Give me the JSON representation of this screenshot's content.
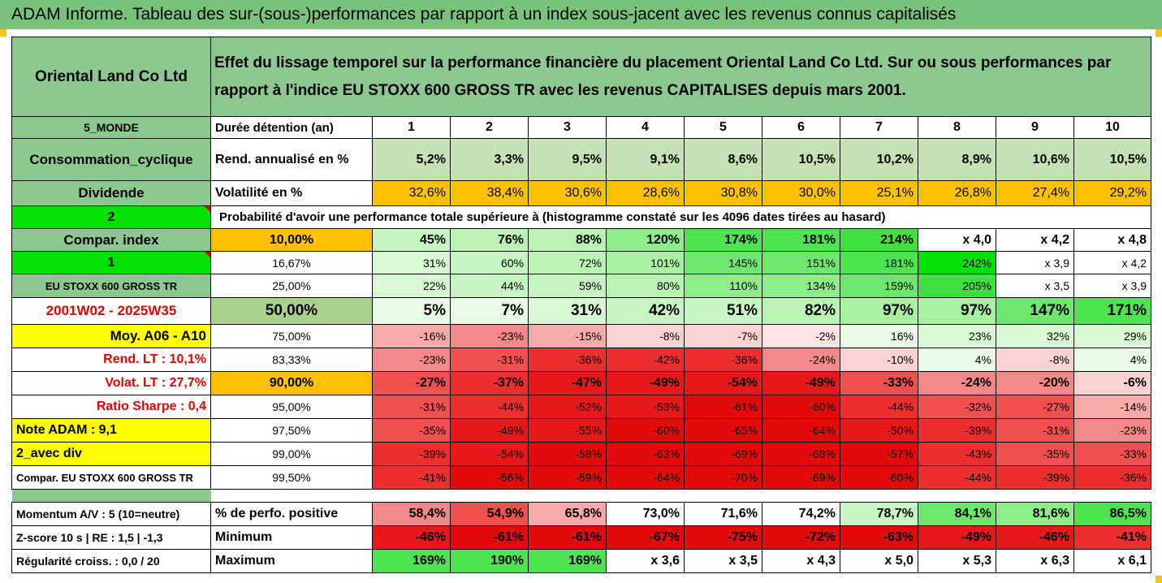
{
  "title": "ADAM Informe. Tableau des sur-(sous-)performances par rapport à un index sous-jacent avec les revenus connus capitalisés",
  "header": {
    "company": "Oriental Land Co Ltd",
    "description": "Effet du lissage temporel sur la performance financière du placement Oriental Land Co Ltd. Sur ou sous performances par rapport à l'indice EU STOXX 600 GROSS TR avec les revenus CAPITALISES depuis mars 2001."
  },
  "side": {
    "zone": "5_MONDE",
    "sector": "Consommation_cyclique",
    "dividend": "Dividende",
    "num2": "2",
    "compar": "Compar. index",
    "num1": "1",
    "index": "EU STOXX 600 GROSS TR",
    "period": "2001W02 - 2025W35",
    "moy": "Moy. A06 - A10",
    "rend": "Rend. LT :   10,1%",
    "volat": "Volat. LT :   27,7%",
    "sharpe": "Ratio Sharpe :   0,4",
    "note": "Note ADAM : 9,1",
    "avecdiv": "2_avec div",
    "compar2": "Compar. EU STOXX 600 GROSS TR",
    "momentum": "Momentum A/V : 5 (10=neutre)",
    "zscore": "Z-score 10 s  | RE : 1,5  | -1,3",
    "regul": "Régularité croiss. : 0,0 / 20"
  },
  "labels": {
    "duree": "Durée détention (an)",
    "rend": "Rend. annualisé en %",
    "vol": "Volatilité en %",
    "proba": "Probabilité d'avoir une performance totale supérieure à (histogramme constaté sur les 4096 dates tirées au hasard)",
    "pos": "% de perfo. positive",
    "min": "Minimum",
    "max": "Maximum"
  },
  "years": [
    "1",
    "2",
    "3",
    "4",
    "5",
    "6",
    "7",
    "8",
    "9",
    "10"
  ],
  "rend": [
    "5,2%",
    "3,3%",
    "9,5%",
    "9,1%",
    "8,6%",
    "10,5%",
    "10,2%",
    "8,9%",
    "10,6%",
    "10,5%"
  ],
  "vol": [
    "32,6%",
    "38,4%",
    "30,6%",
    "28,6%",
    "30,8%",
    "30,0%",
    "25,1%",
    "26,8%",
    "27,4%",
    "29,2%"
  ],
  "quantiles": [
    {
      "q": "10,00%",
      "v": [
        "45%",
        "76%",
        "88%",
        "120%",
        "174%",
        "181%",
        "214%",
        "x 4,0",
        "x 4,2",
        "x 4,8"
      ]
    },
    {
      "q": "16,67%",
      "v": [
        "31%",
        "60%",
        "72%",
        "101%",
        "145%",
        "151%",
        "181%",
        "242%",
        "x 3,9",
        "x 4,2"
      ]
    },
    {
      "q": "25,00%",
      "v": [
        "22%",
        "44%",
        "59%",
        "80%",
        "110%",
        "134%",
        "159%",
        "205%",
        "x 3,5",
        "x 3,9"
      ]
    },
    {
      "q": "50,00%",
      "v": [
        "5%",
        "7%",
        "31%",
        "42%",
        "51%",
        "82%",
        "97%",
        "97%",
        "147%",
        "171%"
      ]
    },
    {
      "q": "75,00%",
      "v": [
        "-16%",
        "-23%",
        "-15%",
        "-8%",
        "-7%",
        "-2%",
        "16%",
        "23%",
        "32%",
        "29%"
      ]
    },
    {
      "q": "83,33%",
      "v": [
        "-23%",
        "-31%",
        "-36%",
        "-42%",
        "-36%",
        "-24%",
        "-10%",
        "4%",
        "-8%",
        "4%"
      ]
    },
    {
      "q": "90,00%",
      "v": [
        "-27%",
        "-37%",
        "-47%",
        "-49%",
        "-54%",
        "-49%",
        "-33%",
        "-24%",
        "-20%",
        "-6%"
      ]
    },
    {
      "q": "95,00%",
      "v": [
        "-31%",
        "-44%",
        "-52%",
        "-53%",
        "-61%",
        "-60%",
        "-44%",
        "-32%",
        "-27%",
        "-14%"
      ]
    },
    {
      "q": "97,50%",
      "v": [
        "-35%",
        "-49%",
        "-55%",
        "-60%",
        "-65%",
        "-64%",
        "-50%",
        "-39%",
        "-31%",
        "-23%"
      ]
    },
    {
      "q": "99,00%",
      "v": [
        "-39%",
        "-54%",
        "-58%",
        "-63%",
        "-69%",
        "-68%",
        "-57%",
        "-43%",
        "-35%",
        "-33%"
      ]
    },
    {
      "q": "99,50%",
      "v": [
        "-41%",
        "-56%",
        "-59%",
        "-64%",
        "-70%",
        "-69%",
        "-60%",
        "-44%",
        "-39%",
        "-36%"
      ]
    }
  ],
  "pos": [
    "58,4%",
    "54,9%",
    "65,8%",
    "73,0%",
    "71,6%",
    "74,2%",
    "78,7%",
    "84,1%",
    "81,6%",
    "86,5%"
  ],
  "min": [
    "-46%",
    "-61%",
    "-61%",
    "-67%",
    "-75%",
    "-72%",
    "-63%",
    "-49%",
    "-46%",
    "-41%"
  ],
  "max": [
    "169%",
    "190%",
    "169%",
    "x 3,6",
    "x 3,5",
    "x 4,3",
    "x 5,0",
    "x 5,3",
    "x 6,3",
    "x 6,1"
  ],
  "colors": {
    "banner": "#79c27a",
    "side_green": "#8cc98e",
    "bright_green": "#00e000",
    "yellow": "#ffff00",
    "orange": "#ffc000",
    "red_text": "#e00000"
  }
}
